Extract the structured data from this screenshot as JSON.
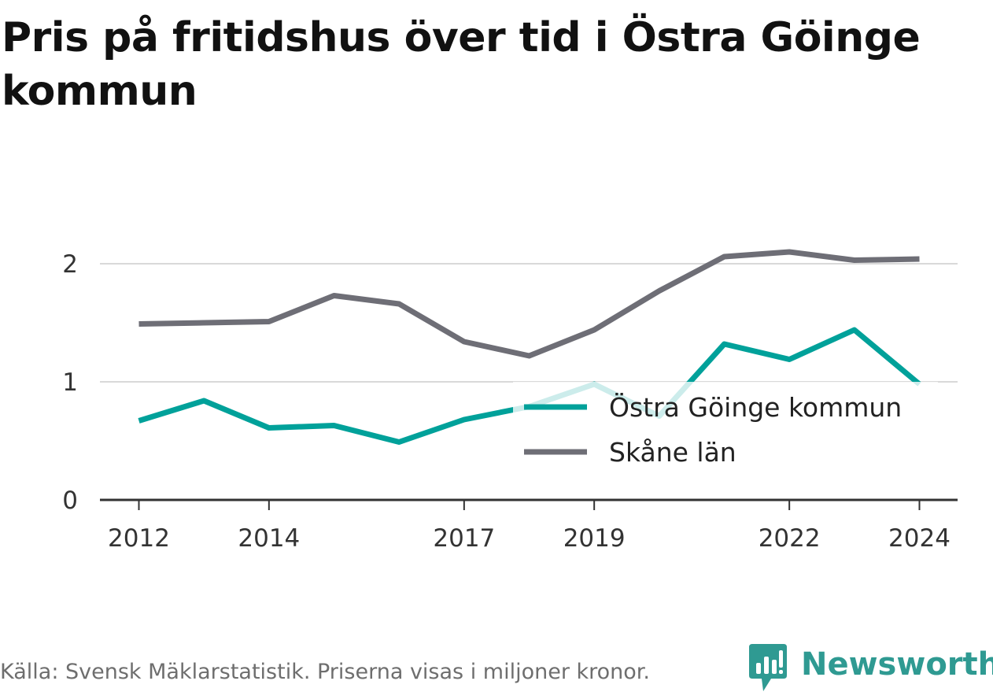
{
  "title": "Pris på fritidshus över tid i Östra Göinge kommun",
  "footer": {
    "source": "Källa: Svensk Mäklarstatistik. Priserna visas i miljoner kronor."
  },
  "logo": {
    "text": "Newsworthy",
    "icon": "bar-chart-speech-bubble-icon",
    "color": "#2f9a92"
  },
  "chart_data": {
    "type": "line",
    "x": [
      2012,
      2013,
      2014,
      2015,
      2016,
      2017,
      2018,
      2019,
      2020,
      2021,
      2022,
      2023,
      2024
    ],
    "x_tick_labels": [
      "2012",
      "2014",
      "2017",
      "2019",
      "2022",
      "2024"
    ],
    "y_tick_labels": [
      "0",
      "1",
      "2"
    ],
    "ylim": [
      0,
      2.2
    ],
    "grid": "horizontal",
    "legend_position": "bottom-right",
    "series": [
      {
        "name": "Östra Göinge kommun",
        "color": "#00a19a",
        "values": [
          0.67,
          0.84,
          0.61,
          0.63,
          0.49,
          0.68,
          0.79,
          0.98,
          0.71,
          1.32,
          1.19,
          1.44,
          0.98
        ]
      },
      {
        "name": "Skåne län",
        "color": "#6e6e76",
        "values": [
          1.49,
          1.5,
          1.51,
          1.73,
          1.66,
          1.34,
          1.22,
          1.44,
          1.77,
          2.06,
          2.1,
          2.03,
          2.04
        ]
      }
    ]
  }
}
